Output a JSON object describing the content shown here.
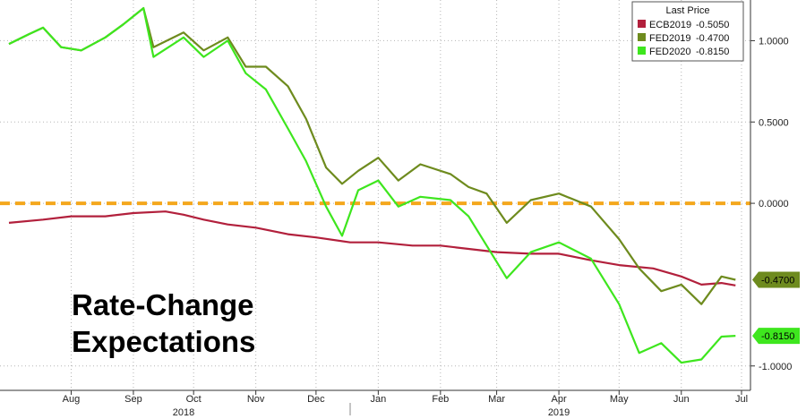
{
  "chart_data": {
    "type": "line",
    "title": "Rate-Change\nExpectations",
    "headline_lines": [
      "Rate-Change",
      "Expectations"
    ],
    "legend_title": "Last Price",
    "legend_position": "top-right",
    "x_period": [
      "2018-07-15",
      "2019-07-15"
    ],
    "ylim": [
      -1.15,
      1.25
    ],
    "y_ticks": [
      {
        "value": 1.0,
        "label": "1.0000"
      },
      {
        "value": 0.5,
        "label": "0.5000"
      },
      {
        "value": 0.0,
        "label": "0.0000"
      },
      {
        "value": -1.0,
        "label": "-1.0000"
      }
    ],
    "months": [
      {
        "label": "Aug",
        "date": "2018-08-15"
      },
      {
        "label": "Sep",
        "date": "2018-09-15"
      },
      {
        "label": "Oct",
        "date": "2018-10-15"
      },
      {
        "label": "Nov",
        "date": "2018-11-15"
      },
      {
        "label": "Dec",
        "date": "2018-12-15"
      },
      {
        "label": "Jan",
        "date": "2019-01-15"
      },
      {
        "label": "Feb",
        "date": "2019-02-15"
      },
      {
        "label": "Mar",
        "date": "2019-03-15"
      },
      {
        "label": "Apr",
        "date": "2019-04-15"
      },
      {
        "label": "May",
        "date": "2019-05-15"
      },
      {
        "label": "Jun",
        "date": "2019-06-15"
      },
      {
        "label": "Jul",
        "date": "2019-07-15"
      }
    ],
    "years": [
      {
        "label": "2018",
        "date": "2018-10-10"
      },
      {
        "label": "2019",
        "date": "2019-04-15"
      }
    ],
    "year_divider_date": "2019-01-01",
    "zero_line": {
      "value": 0.0,
      "color": "#f4a71c"
    },
    "series": [
      {
        "name": "ECB2019",
        "last_label": "-0.5050",
        "color": "#b2203c",
        "points": [
          [
            "2018-07-15",
            -0.12
          ],
          [
            "2018-08-01",
            -0.1
          ],
          [
            "2018-08-15",
            -0.08
          ],
          [
            "2018-09-01",
            -0.08
          ],
          [
            "2018-09-15",
            -0.06
          ],
          [
            "2018-10-01",
            -0.05
          ],
          [
            "2018-10-10",
            -0.07
          ],
          [
            "2018-10-20",
            -0.1
          ],
          [
            "2018-11-01",
            -0.13
          ],
          [
            "2018-11-15",
            -0.15
          ],
          [
            "2018-12-01",
            -0.19
          ],
          [
            "2018-12-15",
            -0.21
          ],
          [
            "2019-01-01",
            -0.24
          ],
          [
            "2019-01-15",
            -0.24
          ],
          [
            "2019-02-01",
            -0.26
          ],
          [
            "2019-02-15",
            -0.26
          ],
          [
            "2019-03-01",
            -0.28
          ],
          [
            "2019-03-15",
            -0.3
          ],
          [
            "2019-04-01",
            -0.31
          ],
          [
            "2019-04-15",
            -0.31
          ],
          [
            "2019-05-01",
            -0.35
          ],
          [
            "2019-05-15",
            -0.38
          ],
          [
            "2019-06-01",
            -0.4
          ],
          [
            "2019-06-15",
            -0.45
          ],
          [
            "2019-06-25",
            -0.5
          ],
          [
            "2019-07-05",
            -0.49
          ],
          [
            "2019-07-12",
            -0.505
          ]
        ]
      },
      {
        "name": "FED2019",
        "last_label": "-0.4700",
        "color": "#6e8b1e",
        "points": [
          [
            "2018-07-15",
            0.98
          ],
          [
            "2018-07-25",
            1.04
          ],
          [
            "2018-08-01",
            1.08
          ],
          [
            "2018-08-10",
            0.96
          ],
          [
            "2018-08-20",
            0.94
          ],
          [
            "2018-09-01",
            1.02
          ],
          [
            "2018-09-10",
            1.1
          ],
          [
            "2018-09-20",
            1.2
          ],
          [
            "2018-09-25",
            0.96
          ],
          [
            "2018-10-10",
            1.05
          ],
          [
            "2018-10-20",
            0.94
          ],
          [
            "2018-11-01",
            1.02
          ],
          [
            "2018-11-10",
            0.84
          ],
          [
            "2018-11-20",
            0.84
          ],
          [
            "2018-12-01",
            0.72
          ],
          [
            "2018-12-10",
            0.52
          ],
          [
            "2018-12-20",
            0.22
          ],
          [
            "2018-12-28",
            0.12
          ],
          [
            "2019-01-05",
            0.2
          ],
          [
            "2019-01-15",
            0.28
          ],
          [
            "2019-01-25",
            0.14
          ],
          [
            "2019-02-05",
            0.24
          ],
          [
            "2019-02-20",
            0.18
          ],
          [
            "2019-03-01",
            0.1
          ],
          [
            "2019-03-10",
            0.06
          ],
          [
            "2019-03-20",
            -0.12
          ],
          [
            "2019-04-01",
            0.02
          ],
          [
            "2019-04-15",
            0.06
          ],
          [
            "2019-05-01",
            -0.02
          ],
          [
            "2019-05-15",
            -0.22
          ],
          [
            "2019-05-25",
            -0.4
          ],
          [
            "2019-06-05",
            -0.54
          ],
          [
            "2019-06-15",
            -0.5
          ],
          [
            "2019-06-25",
            -0.62
          ],
          [
            "2019-07-05",
            -0.45
          ],
          [
            "2019-07-12",
            -0.47
          ]
        ]
      },
      {
        "name": "FED2020",
        "last_label": "-0.8150",
        "color": "#3ee61e",
        "points": [
          [
            "2018-07-15",
            0.98
          ],
          [
            "2018-07-25",
            1.04
          ],
          [
            "2018-08-01",
            1.08
          ],
          [
            "2018-08-10",
            0.96
          ],
          [
            "2018-08-20",
            0.94
          ],
          [
            "2018-09-01",
            1.02
          ],
          [
            "2018-09-10",
            1.1
          ],
          [
            "2018-09-20",
            1.2
          ],
          [
            "2018-09-25",
            0.9
          ],
          [
            "2018-10-10",
            1.02
          ],
          [
            "2018-10-20",
            0.9
          ],
          [
            "2018-11-01",
            1.0
          ],
          [
            "2018-11-10",
            0.8
          ],
          [
            "2018-11-20",
            0.7
          ],
          [
            "2018-12-01",
            0.46
          ],
          [
            "2018-12-10",
            0.26
          ],
          [
            "2018-12-20",
            -0.02
          ],
          [
            "2018-12-28",
            -0.2
          ],
          [
            "2019-01-05",
            0.08
          ],
          [
            "2019-01-15",
            0.14
          ],
          [
            "2019-01-25",
            -0.02
          ],
          [
            "2019-02-05",
            0.04
          ],
          [
            "2019-02-20",
            0.02
          ],
          [
            "2019-03-01",
            -0.08
          ],
          [
            "2019-03-10",
            -0.26
          ],
          [
            "2019-03-20",
            -0.46
          ],
          [
            "2019-04-01",
            -0.3
          ],
          [
            "2019-04-15",
            -0.24
          ],
          [
            "2019-05-01",
            -0.34
          ],
          [
            "2019-05-15",
            -0.62
          ],
          [
            "2019-05-25",
            -0.92
          ],
          [
            "2019-06-05",
            -0.86
          ],
          [
            "2019-06-15",
            -0.98
          ],
          [
            "2019-06-25",
            -0.96
          ],
          [
            "2019-07-05",
            -0.82
          ],
          [
            "2019-07-12",
            -0.815
          ]
        ]
      }
    ],
    "end_tags": [
      {
        "series": "FED2019",
        "label": "-0.4700",
        "value": -0.47,
        "color": "#6e8b1e"
      },
      {
        "series": "FED2020",
        "label": "-0.8150",
        "value": -0.815,
        "color": "#3ee61e"
      }
    ],
    "grid": true
  }
}
